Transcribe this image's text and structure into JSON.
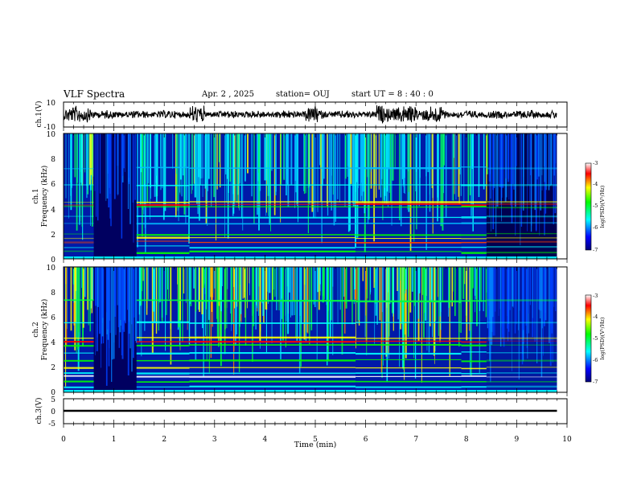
{
  "header": {
    "title": "VLF Spectra",
    "date": "Apr. 2 , 2025",
    "station": "station= OUJ",
    "start": "start UT = 8 : 40 : 0"
  },
  "chart_data": [
    {
      "type": "line",
      "name": "waveform-ch1",
      "ylabel": "ch.1(V)",
      "ylim": [
        -10,
        10
      ],
      "yticks": [
        "10",
        "-10"
      ],
      "xlim": [
        0,
        10
      ]
    },
    {
      "type": "heatmap",
      "name": "spectrogram-ch1",
      "ylabel": "ch.1\nFrequency (kHz)",
      "ylabel_lines": [
        "ch.1",
        "Frequency (kHz)"
      ],
      "ylim": [
        0,
        10
      ],
      "yticks": [
        "0",
        "2",
        "4",
        "6",
        "8",
        "10"
      ],
      "xlim": [
        0,
        10
      ],
      "colorbar": {
        "label": "log(PSD)(V²/Hz)",
        "range": [
          -7,
          -3
        ],
        "ticks": [
          "-3",
          "-4",
          "-5",
          "-6",
          "-7"
        ]
      },
      "data_end_min": 9.8
    },
    {
      "type": "heatmap",
      "name": "spectrogram-ch2",
      "ylabel": "ch.2\nFrequency (kHz)",
      "ylabel_lines": [
        "ch.2",
        "Frequency (kHz)"
      ],
      "ylim": [
        0,
        10
      ],
      "yticks": [
        "0",
        "2",
        "4",
        "6",
        "8",
        "10"
      ],
      "xlim": [
        0,
        10
      ],
      "colorbar": {
        "label": "log(PSD)(V²/Hz)",
        "range": [
          -7,
          -3
        ],
        "ticks": [
          "-3",
          "-4",
          "-5",
          "-6",
          "-7"
        ]
      },
      "data_end_min": 9.8
    },
    {
      "type": "line",
      "name": "waveform-ch3",
      "ylabel": "ch.3(V)",
      "ylim": [
        -5,
        5
      ],
      "yticks": [
        "5",
        "0",
        "-5"
      ],
      "xlim": [
        0,
        10
      ],
      "xlabel": "Time (min)",
      "xticks": [
        "0",
        "1",
        "2",
        "3",
        "4",
        "5",
        "6",
        "7",
        "8",
        "9",
        "10"
      ]
    }
  ],
  "colors": {
    "scale": [
      "#00007a",
      "#0000ff",
      "#0080ff",
      "#00ffff",
      "#00ff00",
      "#ffff00",
      "#ff0000",
      "#ffffff"
    ]
  }
}
